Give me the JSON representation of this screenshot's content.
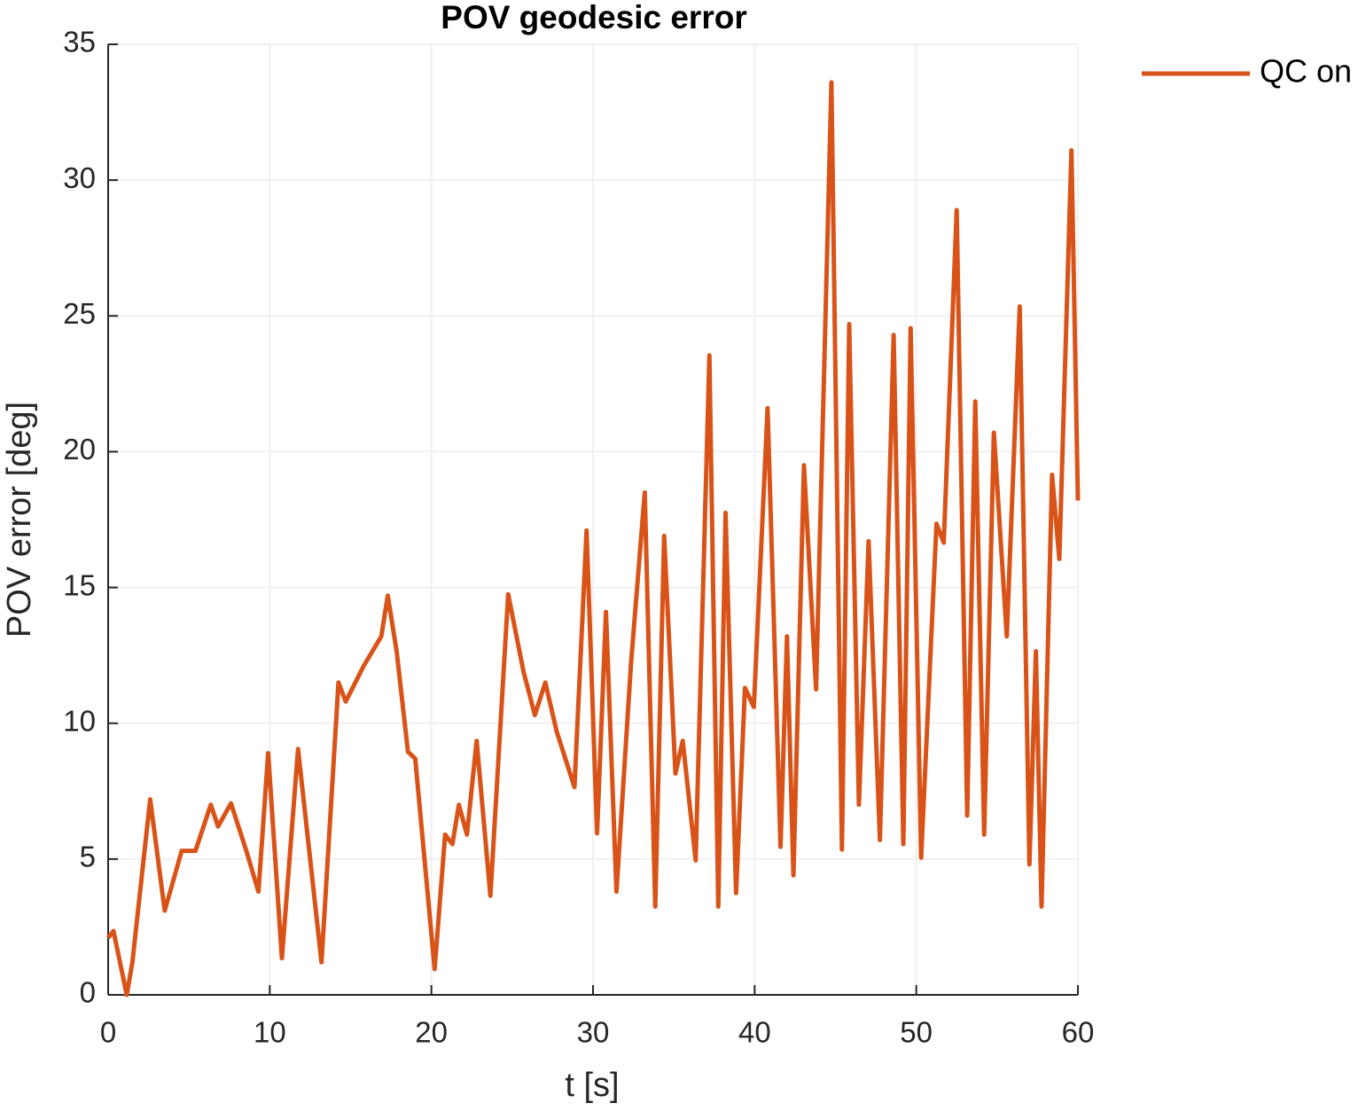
{
  "chart_data": {
    "type": "line",
    "title": "POV geodesic error",
    "x_label": "t [s]",
    "y_label": "POV error [deg]",
    "x": [
      0,
      0.33,
      1.15,
      1.5,
      2.6,
      3.5,
      4.55,
      5.4,
      6.35,
      6.8,
      7.6,
      8.55,
      9.3,
      9.9,
      10.75,
      11.75,
      13.2,
      14.25,
      14.7,
      15.8,
      16.9,
      17.3,
      17.85,
      18.55,
      19.0,
      20.2,
      20.85,
      21.3,
      21.7,
      22.2,
      22.8,
      23.65,
      24.75,
      25.7,
      26.4,
      27.05,
      27.75,
      28.85,
      29.6,
      30.25,
      30.8,
      31.45,
      32.35,
      33.2,
      33.85,
      34.4,
      35.1,
      35.55,
      36.35,
      37.2,
      37.75,
      38.2,
      38.85,
      39.4,
      39.95,
      40.8,
      41.6,
      42.0,
      42.4,
      43.05,
      43.8,
      44.75,
      45.4,
      45.85,
      46.45,
      47.05,
      47.75,
      48.6,
      49.2,
      49.65,
      50.3,
      51.25,
      51.7,
      52.5,
      53.15,
      53.65,
      54.2,
      54.8,
      55.6,
      56.4,
      57.0,
      57.4,
      57.75,
      58.4,
      58.85,
      59.6,
      60
    ],
    "series": [
      {
        "name": "QC on",
        "color": "#D95319",
        "values": [
          2.1,
          2.35,
          0,
          1.2,
          7.2,
          3.1,
          5.3,
          5.3,
          7.0,
          6.2,
          7.05,
          5.3,
          3.8,
          8.9,
          1.35,
          9.05,
          1.2,
          11.5,
          10.8,
          12.1,
          13.2,
          14.7,
          12.65,
          8.95,
          8.7,
          0.95,
          5.9,
          5.55,
          7.0,
          5.9,
          9.35,
          3.65,
          14.75,
          11.9,
          10.3,
          11.5,
          9.7,
          7.65,
          17.1,
          5.95,
          14.1,
          3.8,
          12.2,
          18.5,
          3.25,
          16.9,
          8.15,
          9.35,
          4.95,
          23.55,
          3.25,
          17.75,
          3.75,
          11.3,
          10.6,
          21.6,
          5.45,
          13.2,
          4.4,
          19.5,
          11.25,
          33.6,
          5.35,
          24.7,
          7.0,
          16.7,
          5.7,
          24.3,
          5.55,
          24.55,
          5.05,
          17.35,
          16.65,
          28.9,
          6.6,
          21.85,
          5.9,
          20.7,
          13.2,
          25.35,
          4.8,
          12.65,
          3.25,
          19.15,
          16.05,
          31.1,
          18.2
        ]
      }
    ],
    "xlim": [
      0,
      60
    ],
    "xticks": [
      0,
      10,
      20,
      30,
      40,
      50,
      60
    ],
    "ylim": [
      0,
      35
    ],
    "yticks": [
      0,
      5,
      10,
      15,
      20,
      25,
      30,
      35
    ],
    "grid": true,
    "legend": "outside-top-right"
  }
}
